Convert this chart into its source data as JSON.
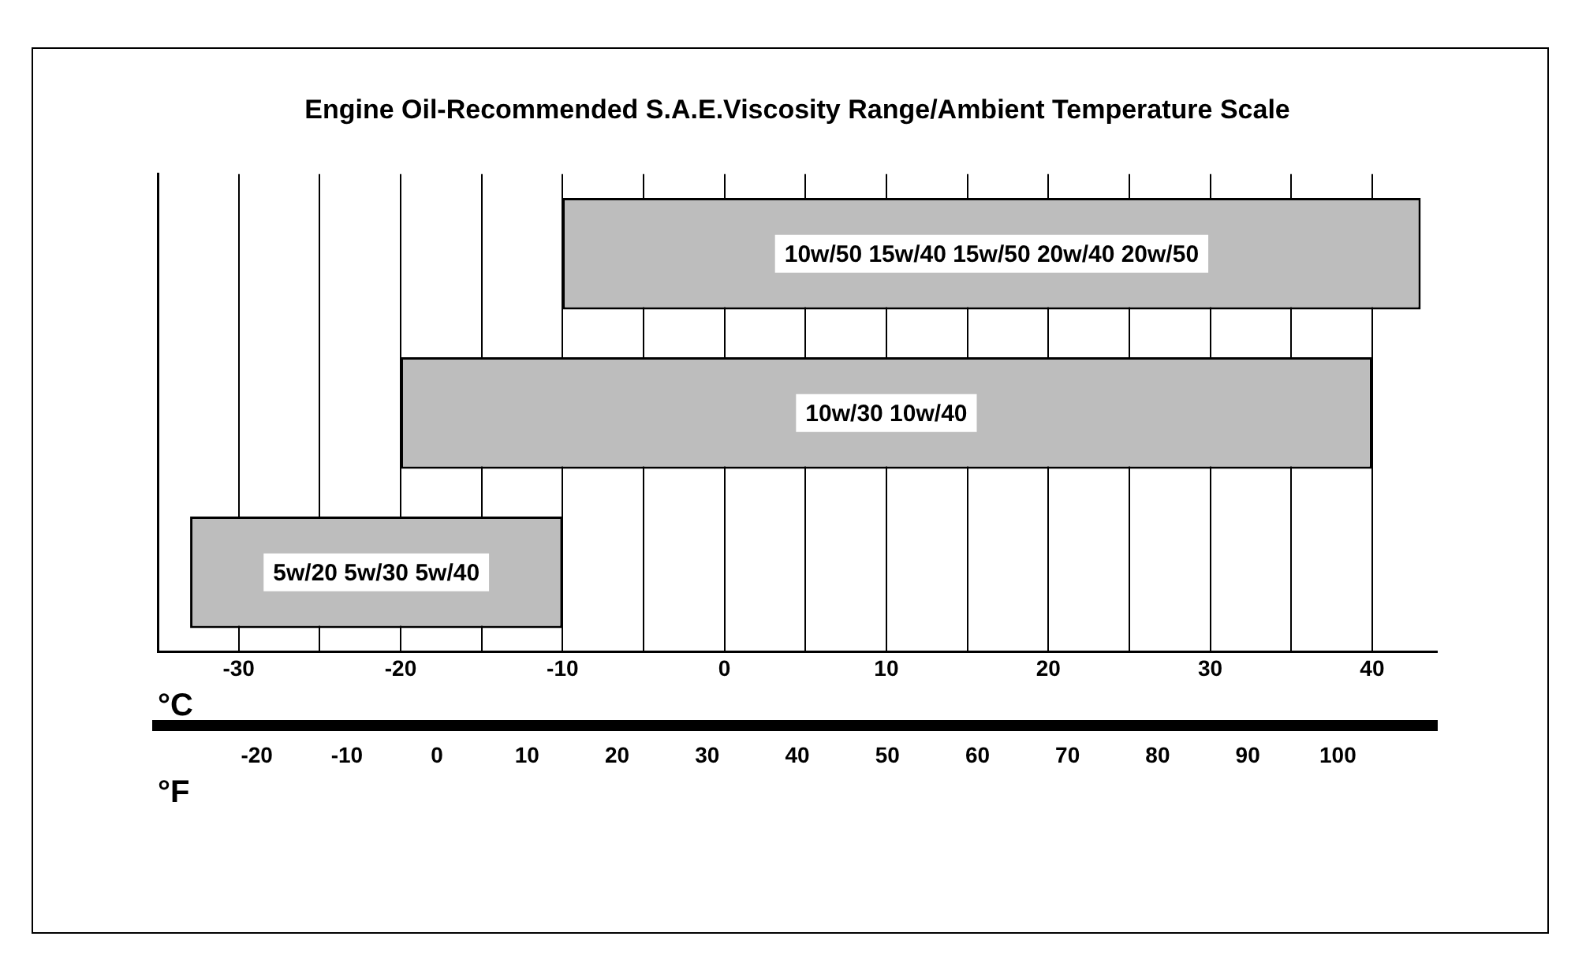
{
  "chart_data": {
    "type": "bar",
    "orientation": "horizontal",
    "title": "Engine Oil-Recommended S.A.E.Viscosity Range/Ambient Temperature Scale",
    "categories": [
      "10w/50 15w/40 15w/50 20w/40 20w/50",
      "10w/30 10w/40",
      "5w/20 5w/30 5w/40"
    ],
    "base": [
      -10,
      -20,
      -33
    ],
    "values": [
      53,
      60,
      23
    ],
    "color": "#bdbdbd",
    "xlabel": "°C",
    "x2label": "°F",
    "xlim": [
      -35,
      44
    ],
    "xticks": [
      {
        "value": -35,
        "label": null
      },
      -30,
      {
        "value": -25,
        "label": null
      },
      -20,
      {
        "value": -15,
        "label": null
      },
      -10,
      {
        "value": -5,
        "label": null
      },
      0,
      {
        "value": 5,
        "label": null
      },
      10,
      {
        "value": 15,
        "label": null
      },
      20,
      {
        "value": 25,
        "label": null
      },
      30,
      {
        "value": 35,
        "label": null
      },
      40
    ],
    "x2lim": [
      -31,
      111
    ],
    "x2ticks": [
      -20,
      -10,
      0,
      10,
      20,
      30,
      40,
      50,
      60,
      70,
      80,
      90,
      100
    ],
    "grid": "x"
  }
}
